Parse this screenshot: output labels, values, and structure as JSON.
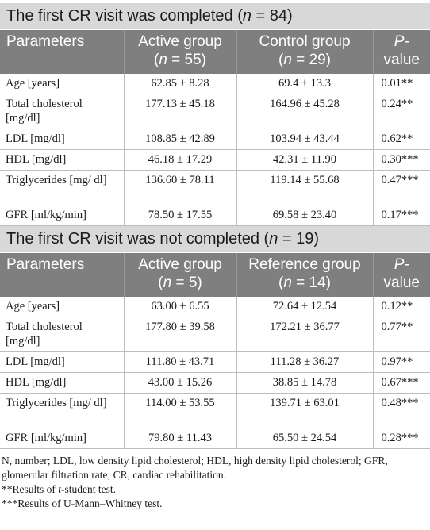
{
  "sections": [
    {
      "title_pre": "The first CR visit was completed (",
      "title_n": "n",
      "title_post": " = 84)",
      "headers": {
        "param": "Parameters",
        "col2_line1": "Active group",
        "col2_n": "n",
        "col2_rest": " = 55)",
        "col3_line1": "Control group",
        "col3_n": "n",
        "col3_rest": " = 29)",
        "col4_p": "P-",
        "col4_line2": "value"
      },
      "rows": [
        {
          "param": "Age [years]",
          "active": "62.85 ± 8.28",
          "other": "69.4 ± 13.3",
          "p": "0.01**"
        },
        {
          "param": "Total cholesterol [mg/dl]",
          "active": "177.13 ± 45.18",
          "other": "164.96 ± 45.28",
          "p": "0.24**"
        },
        {
          "param": "LDL [mg/dl]",
          "active": "108.85 ± 42.89",
          "other": "103.94 ± 43.44",
          "p": "0.62**"
        },
        {
          "param": "HDL [mg/dl]",
          "active": "46.18 ± 17.29",
          "other": "42.31 ± 11.90",
          "p": "0.30***"
        },
        {
          "param": "Triglycerides [mg/ dl]",
          "active": "136.60 ± 78.11",
          "other": "119.14 ± 55.68",
          "p": "0.47***"
        },
        {
          "param": "GFR [ml/kg/min]",
          "active": "78.50 ± 17.55",
          "other": "69.58 ± 23.40",
          "p": "0.17***"
        }
      ]
    },
    {
      "title_pre": "The first CR visit was not completed (",
      "title_n": "n",
      "title_post": " = 19)",
      "headers": {
        "param": "Parameters",
        "col2_line1": "Active group",
        "col2_n": "n",
        "col2_rest": " = 5)",
        "col3_line1": "Reference group",
        "col3_n": "n",
        "col3_rest": " = 14)",
        "col4_p": "P-",
        "col4_line2": "value"
      },
      "rows": [
        {
          "param": "Age [years]",
          "active": "63.00 ± 6.55",
          "other": "72.64 ± 12.54",
          "p": "0.12**"
        },
        {
          "param": "Total cholesterol [mg/dl]",
          "active": "177.80 ± 39.58",
          "other": "172.21 ± 36.77",
          "p": "0.77**"
        },
        {
          "param": "LDL [mg/dl]",
          "active": "111.80 ± 43.71",
          "other": "111.28 ± 36.27",
          "p": "0.97**"
        },
        {
          "param": "HDL [mg/dl]",
          "active": "43.00 ± 15.26",
          "other": "38.85 ± 14.78",
          "p": "0.67***"
        },
        {
          "param": "Triglycerides [mg/ dl]",
          "active": "114.00 ± 53.55",
          "other": "139.71 ± 63.01",
          "p": "0.48***"
        },
        {
          "param": "GFR [ml/kg/min]",
          "active": "79.80 ± 11.43",
          "other": "65.50 ± 24.54",
          "p": "0.28***"
        }
      ]
    }
  ],
  "footnotes": {
    "abbrev": "N, number; LDL, low density lipid cholesterol; HDL, high density lipid cholesterol; GFR, glomerular filtration rate; CR, cardiac rehabilitation.",
    "ttest_pre": "**Results of ",
    "ttest_it": "t",
    "ttest_post": "-student test.",
    "mw": "***Results of U-Mann–Whitney test."
  }
}
